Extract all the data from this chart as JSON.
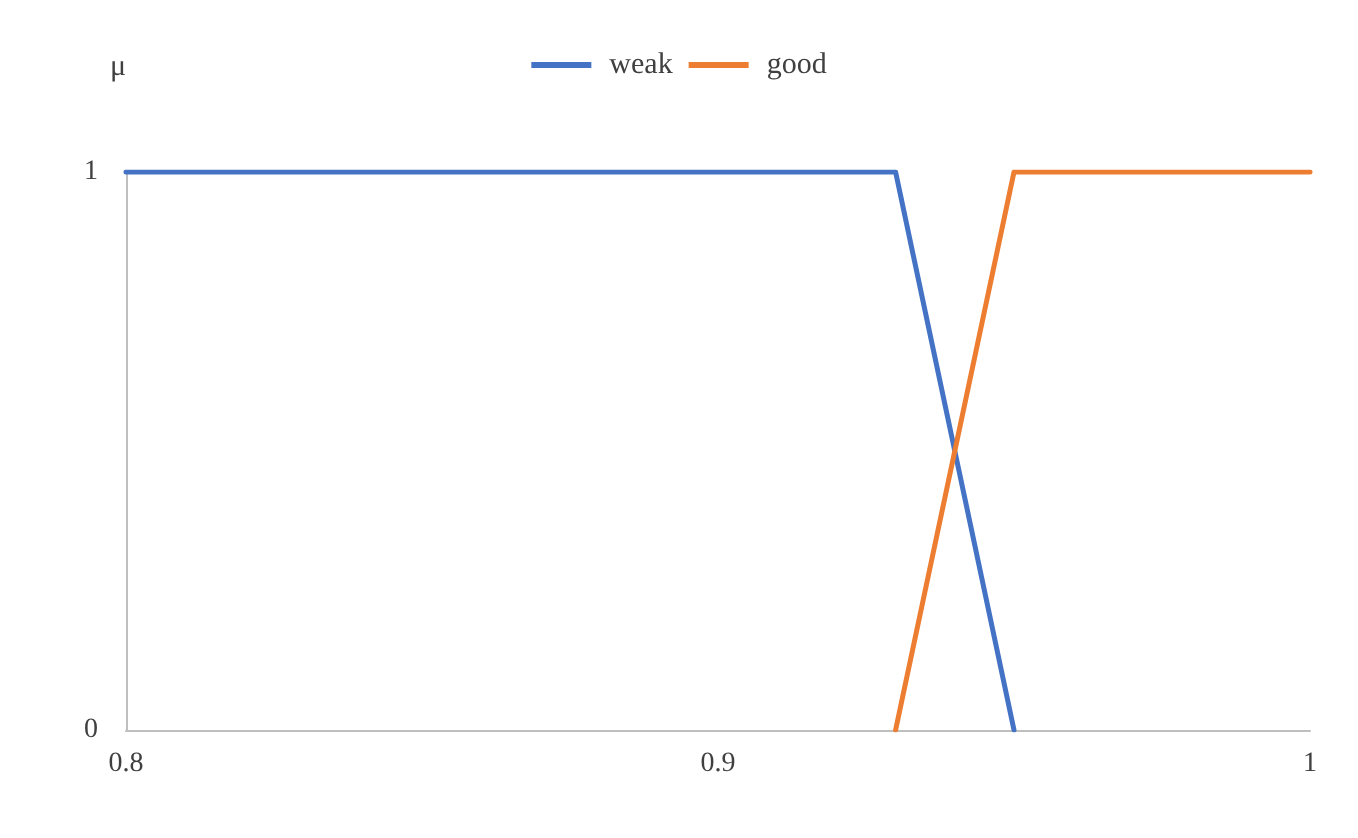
{
  "chart_data": {
    "type": "line",
    "ylabel": "μ",
    "legend": "top",
    "grid": false,
    "marker": "none",
    "line_style": "solid",
    "xlim": [
      0.8,
      1
    ],
    "xticks": [
      0.8,
      0.9,
      1
    ],
    "ylim": [
      0,
      1
    ],
    "yticks": [
      0,
      1
    ],
    "series": [
      {
        "name": "weak",
        "color": "#4472c4",
        "x": [
          0.8,
          0.93,
          0.95
        ],
        "values": [
          1,
          1,
          0
        ]
      },
      {
        "name": "good",
        "color": "#ed7d31",
        "x": [
          0.93,
          0.95,
          1
        ],
        "values": [
          0,
          1,
          1
        ]
      }
    ]
  }
}
